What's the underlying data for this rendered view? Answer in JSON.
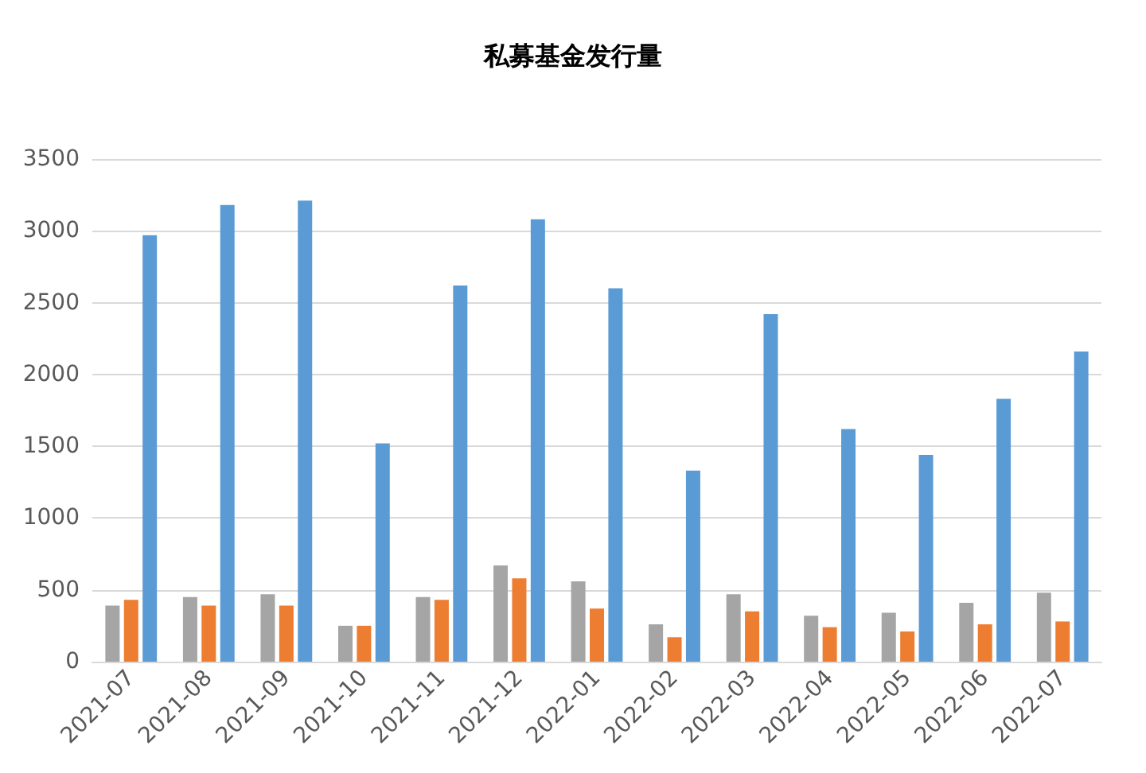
{
  "chart_data": {
    "type": "bar",
    "title": "私募基金发行量",
    "categories": [
      "2021-07",
      "2021-08",
      "2021-09",
      "2021-10",
      "2021-11",
      "2021-12",
      "2022-01",
      "2022-02",
      "2022-03",
      "2022-04",
      "2022-05",
      "2022-06",
      "2022-07"
    ],
    "series": [
      {
        "color": "#a5a5a5",
        "values": [
          390,
          450,
          470,
          250,
          450,
          670,
          560,
          260,
          470,
          320,
          340,
          410,
          480
        ]
      },
      {
        "color": "#ed7d31",
        "values": [
          430,
          390,
          390,
          250,
          430,
          580,
          370,
          170,
          350,
          240,
          210,
          260,
          280
        ]
      },
      {
        "color": "#5b9bd5",
        "values": [
          2970,
          3180,
          3210,
          1520,
          2620,
          3080,
          2600,
          1330,
          2420,
          1620,
          1440,
          1830,
          2160
        ]
      }
    ],
    "ylim": [
      0,
      3500
    ],
    "yticks": [
      0,
      500,
      1000,
      1500,
      2000,
      2500,
      3000,
      3500
    ],
    "grid": "y"
  }
}
